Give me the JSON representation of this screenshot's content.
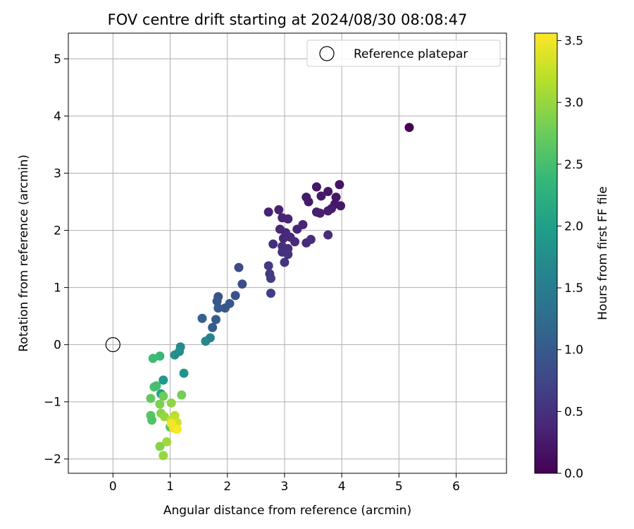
{
  "chart_data": {
    "type": "scatter",
    "title": "FOV centre drift starting at 2024/08/30 08:08:47",
    "xlabel": "Angular distance from reference (arcmin)",
    "ylabel": "Rotation from reference (arcmin)",
    "xlim": [
      -0.78,
      6.88
    ],
    "ylim": [
      -2.25,
      5.45
    ],
    "xticks": [
      0,
      1,
      2,
      3,
      4,
      5,
      6
    ],
    "yticks": [
      -2,
      -1,
      0,
      1,
      2,
      3,
      4,
      5
    ],
    "grid": true,
    "legend": {
      "position": "top-right",
      "entries": [
        "Reference platepar"
      ]
    },
    "reference_point": {
      "x": 0,
      "y": 0,
      "label": "Reference platepar"
    },
    "colorbar": {
      "label": "Hours from first FF file",
      "colormap": "viridis",
      "range": [
        0.0,
        3.56
      ],
      "ticks": [
        0.0,
        0.5,
        1.0,
        1.5,
        2.0,
        2.5,
        3.0,
        3.5
      ],
      "tick_labels": [
        "0.0",
        "0.5",
        "1.0",
        "1.5",
        "2.0",
        "2.5",
        "3.0",
        "3.5"
      ]
    },
    "series": [
      {
        "points": [
          [
            5.18,
            3.8,
            0.0
          ],
          [
            3.96,
            2.8,
            0.18
          ],
          [
            3.56,
            2.76,
            0.2
          ],
          [
            3.76,
            2.68,
            0.22
          ],
          [
            3.64,
            2.6,
            0.24
          ],
          [
            3.38,
            2.58,
            0.26
          ],
          [
            3.42,
            2.5,
            0.25
          ],
          [
            3.9,
            2.58,
            0.21
          ],
          [
            3.88,
            2.46,
            0.22
          ],
          [
            3.98,
            2.43,
            0.23
          ],
          [
            3.82,
            2.38,
            0.27
          ],
          [
            3.76,
            2.34,
            0.28
          ],
          [
            3.56,
            2.32,
            0.3
          ],
          [
            3.62,
            2.3,
            0.31
          ],
          [
            2.9,
            2.36,
            0.33
          ],
          [
            2.72,
            2.32,
            0.34
          ],
          [
            2.96,
            2.22,
            0.35
          ],
          [
            3.06,
            2.2,
            0.36
          ],
          [
            3.32,
            2.1,
            0.37
          ],
          [
            3.22,
            2.02,
            0.38
          ],
          [
            2.92,
            2.02,
            0.39
          ],
          [
            3.02,
            1.96,
            0.4
          ],
          [
            2.98,
            1.86,
            0.41
          ],
          [
            3.1,
            1.88,
            0.42
          ],
          [
            3.18,
            1.8,
            0.43
          ],
          [
            3.38,
            1.78,
            0.44
          ],
          [
            3.46,
            1.84,
            0.45
          ],
          [
            3.76,
            1.92,
            0.46
          ],
          [
            2.8,
            1.76,
            0.47
          ],
          [
            2.96,
            1.72,
            0.48
          ],
          [
            3.06,
            1.68,
            0.49
          ],
          [
            2.96,
            1.62,
            0.5
          ],
          [
            3.06,
            1.58,
            0.52
          ],
          [
            3.0,
            1.44,
            0.54
          ],
          [
            2.72,
            1.38,
            0.6
          ],
          [
            2.74,
            1.24,
            0.62
          ],
          [
            2.76,
            1.16,
            0.64
          ],
          [
            2.76,
            0.9,
            0.66
          ],
          [
            2.2,
            1.35,
            0.8
          ],
          [
            2.26,
            1.06,
            0.85
          ],
          [
            2.14,
            0.86,
            0.9
          ],
          [
            2.04,
            0.72,
            0.95
          ],
          [
            1.96,
            0.64,
            0.98
          ],
          [
            1.84,
            0.84,
            0.92
          ],
          [
            1.82,
            0.76,
            0.96
          ],
          [
            1.84,
            0.64,
            1.0
          ],
          [
            1.8,
            0.44,
            1.02
          ],
          [
            1.74,
            0.3,
            1.06
          ],
          [
            1.56,
            0.46,
            1.1
          ],
          [
            1.7,
            0.12,
            1.6
          ],
          [
            1.62,
            0.06,
            1.65
          ],
          [
            1.18,
            -0.04,
            1.7
          ],
          [
            1.16,
            -0.12,
            1.75
          ],
          [
            1.08,
            -0.18,
            1.78
          ],
          [
            1.24,
            -0.5,
            1.82
          ],
          [
            0.88,
            -0.62,
            1.9
          ],
          [
            0.84,
            -0.86,
            2.0
          ],
          [
            0.82,
            -0.2,
            2.4
          ],
          [
            0.7,
            -0.24,
            2.45
          ],
          [
            0.72,
            -0.74,
            2.55
          ],
          [
            0.76,
            -0.72,
            2.5
          ],
          [
            1.2,
            -0.88,
            2.8
          ],
          [
            0.66,
            -0.94,
            2.7
          ],
          [
            0.88,
            -0.9,
            2.75
          ],
          [
            0.82,
            -1.04,
            2.85
          ],
          [
            1.02,
            -1.02,
            2.95
          ],
          [
            0.66,
            -1.24,
            2.62
          ],
          [
            0.68,
            -1.32,
            2.58
          ],
          [
            0.84,
            -1.2,
            2.9
          ],
          [
            0.9,
            -1.26,
            3.0
          ],
          [
            1.0,
            -1.44,
            2.6
          ],
          [
            1.06,
            -1.4,
            3.1
          ],
          [
            1.08,
            -1.24,
            3.2
          ],
          [
            1.02,
            -1.32,
            3.25
          ],
          [
            1.12,
            -1.36,
            3.3
          ],
          [
            1.06,
            -1.46,
            3.45
          ],
          [
            1.12,
            -1.48,
            3.55
          ],
          [
            1.02,
            -1.38,
            3.5
          ],
          [
            0.94,
            -1.7,
            3.05
          ],
          [
            0.82,
            -1.78,
            2.9
          ],
          [
            0.88,
            -1.94,
            3.0
          ]
        ]
      }
    ]
  }
}
